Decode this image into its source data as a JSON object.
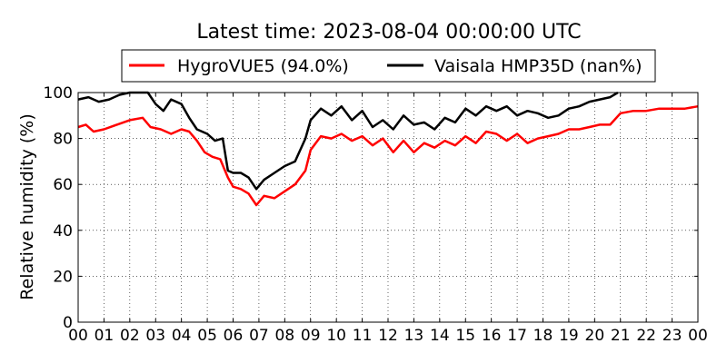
{
  "chart_data": {
    "type": "line",
    "title": "Latest time: 2023-08-04 00:00:00 UTC",
    "xlabel": "",
    "ylabel": "Relative humidity (%)",
    "xlim": [
      0,
      24
    ],
    "ylim": [
      0,
      100
    ],
    "x_ticks": [
      "00",
      "01",
      "02",
      "03",
      "04",
      "05",
      "06",
      "07",
      "08",
      "09",
      "10",
      "11",
      "12",
      "13",
      "14",
      "15",
      "16",
      "17",
      "18",
      "19",
      "20",
      "21",
      "22",
      "23",
      "00"
    ],
    "y_ticks": [
      0,
      20,
      40,
      60,
      80,
      100
    ],
    "grid": true,
    "legend_position": "top-center",
    "series": [
      {
        "name": "HygroVUE5 (94.0%)",
        "color": "#ff0000",
        "x": [
          0,
          0.3,
          0.6,
          1,
          1.5,
          2,
          2.5,
          2.8,
          3.2,
          3.6,
          4,
          4.3,
          4.6,
          4.9,
          5.2,
          5.5,
          5.8,
          6,
          6.3,
          6.6,
          6.9,
          7.2,
          7.6,
          8,
          8.4,
          8.8,
          9,
          9.4,
          9.8,
          10.2,
          10.6,
          11,
          11.4,
          11.8,
          12.2,
          12.6,
          13,
          13.4,
          13.8,
          14.2,
          14.6,
          15,
          15.4,
          15.8,
          16.2,
          16.6,
          17,
          17.4,
          17.8,
          18.2,
          18.6,
          19,
          19.4,
          19.8,
          20.2,
          20.6,
          21,
          21.5,
          22,
          22.5,
          23,
          23.5,
          24
        ],
        "y": [
          85,
          86,
          83,
          84,
          86,
          88,
          89,
          85,
          84,
          82,
          84,
          83,
          79,
          74,
          72,
          71,
          63,
          59,
          58,
          56,
          51,
          55,
          54,
          57,
          60,
          66,
          75,
          81,
          80,
          82,
          79,
          81,
          77,
          80,
          74,
          79,
          74,
          78,
          76,
          79,
          77,
          81,
          78,
          83,
          82,
          79,
          82,
          78,
          80,
          81,
          82,
          84,
          84,
          85,
          86,
          86,
          91,
          92,
          92,
          93,
          93,
          93,
          94
        ]
      },
      {
        "name": "Vaisala HMP35D (nan%)",
        "color": "#000000",
        "x": [
          0,
          0.4,
          0.8,
          1.2,
          1.6,
          2,
          2.4,
          2.7,
          3,
          3.3,
          3.6,
          4,
          4.3,
          4.6,
          5,
          5.3,
          5.6,
          5.8,
          6,
          6.3,
          6.6,
          6.9,
          7.2,
          7.6,
          8,
          8.4,
          8.8,
          9,
          9.4,
          9.8,
          10.2,
          10.6,
          11,
          11.4,
          11.8,
          12.2,
          12.6,
          13,
          13.4,
          13.8,
          14.2,
          14.6,
          15,
          15.4,
          15.8,
          16.2,
          16.6,
          17,
          17.4,
          17.8,
          18.2,
          18.6,
          19,
          19.4,
          19.8,
          20.2,
          20.6,
          20.9
        ],
        "y": [
          97,
          98,
          96,
          97,
          99,
          100,
          100,
          100,
          95,
          92,
          97,
          95,
          89,
          84,
          82,
          79,
          80,
          66,
          65,
          65,
          63,
          58,
          62,
          65,
          68,
          70,
          80,
          88,
          93,
          90,
          94,
          88,
          92,
          85,
          88,
          84,
          90,
          86,
          87,
          84,
          89,
          87,
          93,
          90,
          94,
          92,
          94,
          90,
          92,
          91,
          89,
          90,
          93,
          94,
          96,
          97,
          98,
          100
        ]
      }
    ]
  }
}
